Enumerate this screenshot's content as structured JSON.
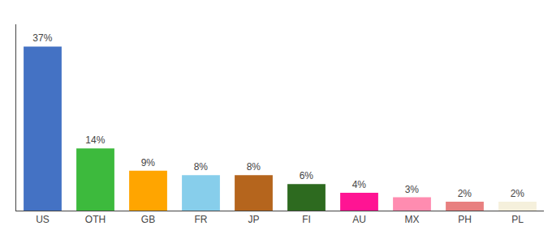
{
  "chart_data": {
    "type": "bar",
    "categories": [
      "US",
      "OTH",
      "GB",
      "FR",
      "JP",
      "FI",
      "AU",
      "MX",
      "PH",
      "PL"
    ],
    "values": [
      37,
      14,
      9,
      8,
      8,
      6,
      4,
      3,
      2,
      2
    ],
    "value_labels": [
      "37%",
      "14%",
      "9%",
      "8%",
      "8%",
      "6%",
      "4%",
      "3%",
      "2%",
      "2%"
    ],
    "colors": [
      "#4472c4",
      "#3dba3d",
      "#ffa500",
      "#87ceeb",
      "#b5651d",
      "#2d6a1f",
      "#ff1493",
      "#ff8cb0",
      "#e88080",
      "#f5f0dc"
    ],
    "ylim": [
      0,
      42
    ],
    "grid": false,
    "data_labels": true,
    "tick_labels": "x"
  }
}
